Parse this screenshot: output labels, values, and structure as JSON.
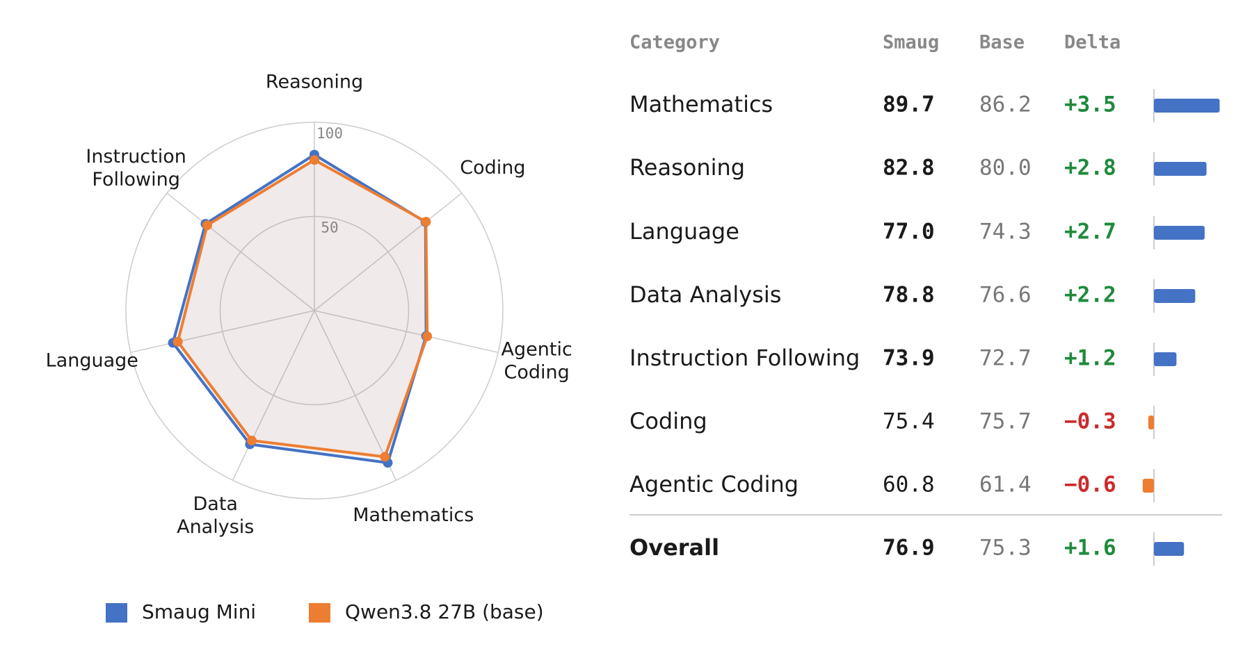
{
  "chart_data": {
    "type": "radar",
    "categories": [
      "Reasoning",
      "Coding",
      "Agentic Coding",
      "Mathematics",
      "Data Analysis",
      "Language",
      "Instruction Following"
    ],
    "rlim": [
      0,
      100
    ],
    "rticks": [
      50,
      100
    ],
    "grid": true,
    "legend": "bottom",
    "series": [
      {
        "name": "Smaug Mini",
        "color": "#4472c4",
        "values": [
          82.8,
          75.4,
          60.8,
          89.7,
          78.8,
          77.0,
          73.9
        ]
      },
      {
        "name": "Qwen3.8 27B (base)",
        "color": "#ed7d31",
        "values": [
          80.0,
          75.7,
          61.4,
          86.2,
          76.6,
          74.3,
          72.7
        ]
      }
    ]
  },
  "table": {
    "columns": [
      "Category",
      "Smaug",
      "Base",
      "Delta"
    ],
    "rows": [
      {
        "category": "Mathematics",
        "smaug": "89.7",
        "base": "86.2",
        "delta": 3.5,
        "delta_label": "+3.5"
      },
      {
        "category": "Reasoning",
        "smaug": "82.8",
        "base": "80.0",
        "delta": 2.8,
        "delta_label": "+2.8"
      },
      {
        "category": "Language",
        "smaug": "77.0",
        "base": "74.3",
        "delta": 2.7,
        "delta_label": "+2.7"
      },
      {
        "category": "Data Analysis",
        "smaug": "78.8",
        "base": "76.6",
        "delta": 2.2,
        "delta_label": "+2.2"
      },
      {
        "category": "Instruction Following",
        "smaug": "73.9",
        "base": "72.7",
        "delta": 1.2,
        "delta_label": "+1.2"
      },
      {
        "category": "Coding",
        "smaug": "75.4",
        "base": "75.7",
        "delta": -0.3,
        "delta_label": "−0.3"
      },
      {
        "category": "Agentic Coding",
        "smaug": "60.8",
        "base": "61.4",
        "delta": -0.6,
        "delta_label": "−0.6"
      }
    ],
    "overall": {
      "category": "Overall",
      "smaug": "76.9",
      "base": "75.3",
      "delta": 1.6,
      "delta_label": "+1.6"
    }
  }
}
